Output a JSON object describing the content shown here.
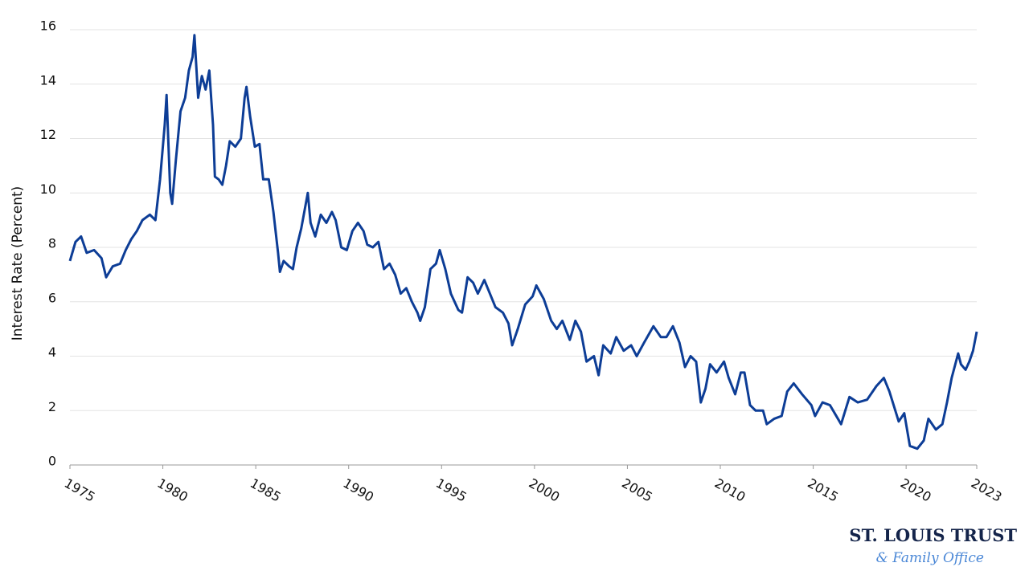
{
  "chart_data": {
    "type": "line",
    "y_label": "Interest Rate (Percent)",
    "color": "#0d3d96",
    "xlim": [
      1975,
      2023.8
    ],
    "xticks": [
      1975,
      1980,
      1985,
      1990,
      1995,
      2000,
      2005,
      2010,
      2015,
      2020,
      {
        "value": 2023.8,
        "label": "2023"
      }
    ],
    "ylim": [
      0,
      16
    ],
    "yticks": [
      0,
      2,
      4,
      6,
      8,
      10,
      12,
      14,
      16
    ],
    "grid": true,
    "x": [
      1975.0,
      1975.3,
      1975.6,
      1975.9,
      1976.3,
      1976.7,
      1976.95,
      1977.3,
      1977.7,
      1978.0,
      1978.3,
      1978.6,
      1978.9,
      1979.3,
      1979.6,
      1979.85,
      1980.1,
      1980.2,
      1980.4,
      1980.5,
      1980.7,
      1980.95,
      1981.2,
      1981.4,
      1981.6,
      1981.7,
      1981.9,
      1982.1,
      1982.3,
      1982.5,
      1982.7,
      1982.8,
      1983.0,
      1983.2,
      1983.4,
      1983.6,
      1983.9,
      1984.2,
      1984.4,
      1984.5,
      1984.7,
      1984.95,
      1985.2,
      1985.4,
      1985.7,
      1985.95,
      1986.2,
      1986.3,
      1986.5,
      1986.8,
      1987.0,
      1987.2,
      1987.45,
      1987.8,
      1987.95,
      1988.2,
      1988.5,
      1988.8,
      1989.1,
      1989.3,
      1989.6,
      1989.9,
      1990.2,
      1990.5,
      1990.8,
      1991.0,
      1991.3,
      1991.6,
      1991.9,
      1992.2,
      1992.5,
      1992.8,
      1993.1,
      1993.4,
      1993.7,
      1993.85,
      1994.1,
      1994.4,
      1994.7,
      1994.9,
      1995.2,
      1995.5,
      1995.9,
      1996.1,
      1996.4,
      1996.7,
      1996.95,
      1997.3,
      1997.6,
      1997.9,
      1998.3,
      1998.6,
      1998.8,
      1999.1,
      1999.5,
      1999.9,
      2000.1,
      2000.5,
      2000.9,
      2001.2,
      2001.5,
      2001.9,
      2002.2,
      2002.5,
      2002.8,
      2003.2,
      2003.45,
      2003.7,
      2004.1,
      2004.4,
      2004.8,
      2005.2,
      2005.5,
      2005.9,
      2006.4,
      2006.8,
      2007.1,
      2007.45,
      2007.8,
      2008.1,
      2008.4,
      2008.7,
      2008.95,
      2009.2,
      2009.45,
      2009.8,
      2010.2,
      2010.45,
      2010.8,
      2011.1,
      2011.3,
      2011.6,
      2011.9,
      2012.3,
      2012.5,
      2012.9,
      2013.3,
      2013.6,
      2013.95,
      2014.4,
      2014.9,
      2015.1,
      2015.5,
      2015.9,
      2016.5,
      2016.95,
      2017.4,
      2017.9,
      2018.4,
      2018.8,
      2019.1,
      2019.6,
      2019.9,
      2020.2,
      2020.6,
      2020.95,
      2021.2,
      2021.6,
      2021.95,
      2022.2,
      2022.45,
      2022.8,
      2022.95,
      2023.2,
      2023.4,
      2023.6,
      2023.8
    ],
    "values": [
      7.5,
      8.2,
      8.4,
      7.8,
      7.9,
      7.6,
      6.9,
      7.3,
      7.4,
      7.9,
      8.3,
      8.6,
      9.0,
      9.2,
      9.0,
      10.5,
      12.5,
      13.6,
      10.0,
      9.6,
      11.2,
      13.0,
      13.5,
      14.5,
      15.0,
      15.8,
      13.5,
      14.3,
      13.8,
      14.5,
      12.5,
      10.6,
      10.5,
      10.3,
      11.0,
      11.9,
      11.7,
      12.0,
      13.5,
      13.9,
      12.8,
      11.7,
      11.8,
      10.5,
      10.5,
      9.3,
      7.8,
      7.1,
      7.5,
      7.3,
      7.2,
      8.0,
      8.7,
      10.0,
      8.9,
      8.4,
      9.2,
      8.9,
      9.3,
      9.0,
      8.0,
      7.9,
      8.6,
      8.9,
      8.6,
      8.1,
      8.0,
      8.2,
      7.2,
      7.4,
      7.0,
      6.3,
      6.5,
      6.0,
      5.6,
      5.3,
      5.8,
      7.2,
      7.4,
      7.9,
      7.2,
      6.3,
      5.7,
      5.6,
      6.9,
      6.7,
      6.3,
      6.8,
      6.3,
      5.8,
      5.6,
      5.2,
      4.4,
      5.0,
      5.9,
      6.2,
      6.6,
      6.1,
      5.3,
      5.0,
      5.3,
      4.6,
      5.3,
      4.9,
      3.8,
      4.0,
      3.3,
      4.4,
      4.1,
      4.7,
      4.2,
      4.4,
      4.0,
      4.5,
      5.1,
      4.7,
      4.7,
      5.1,
      4.5,
      3.6,
      4.0,
      3.8,
      2.3,
      2.8,
      3.7,
      3.4,
      3.8,
      3.2,
      2.6,
      3.4,
      3.4,
      2.2,
      2.0,
      2.0,
      1.5,
      1.7,
      1.8,
      2.7,
      3.0,
      2.6,
      2.2,
      1.8,
      2.3,
      2.2,
      1.5,
      2.5,
      2.3,
      2.4,
      2.9,
      3.2,
      2.7,
      1.6,
      1.9,
      0.7,
      0.6,
      0.9,
      1.7,
      1.3,
      1.5,
      2.3,
      3.2,
      4.1,
      3.7,
      3.5,
      3.8,
      4.2,
      4.9
    ]
  },
  "logo": {
    "name": "ST. LOUIS TRUST",
    "tagline": "& Family Office"
  }
}
